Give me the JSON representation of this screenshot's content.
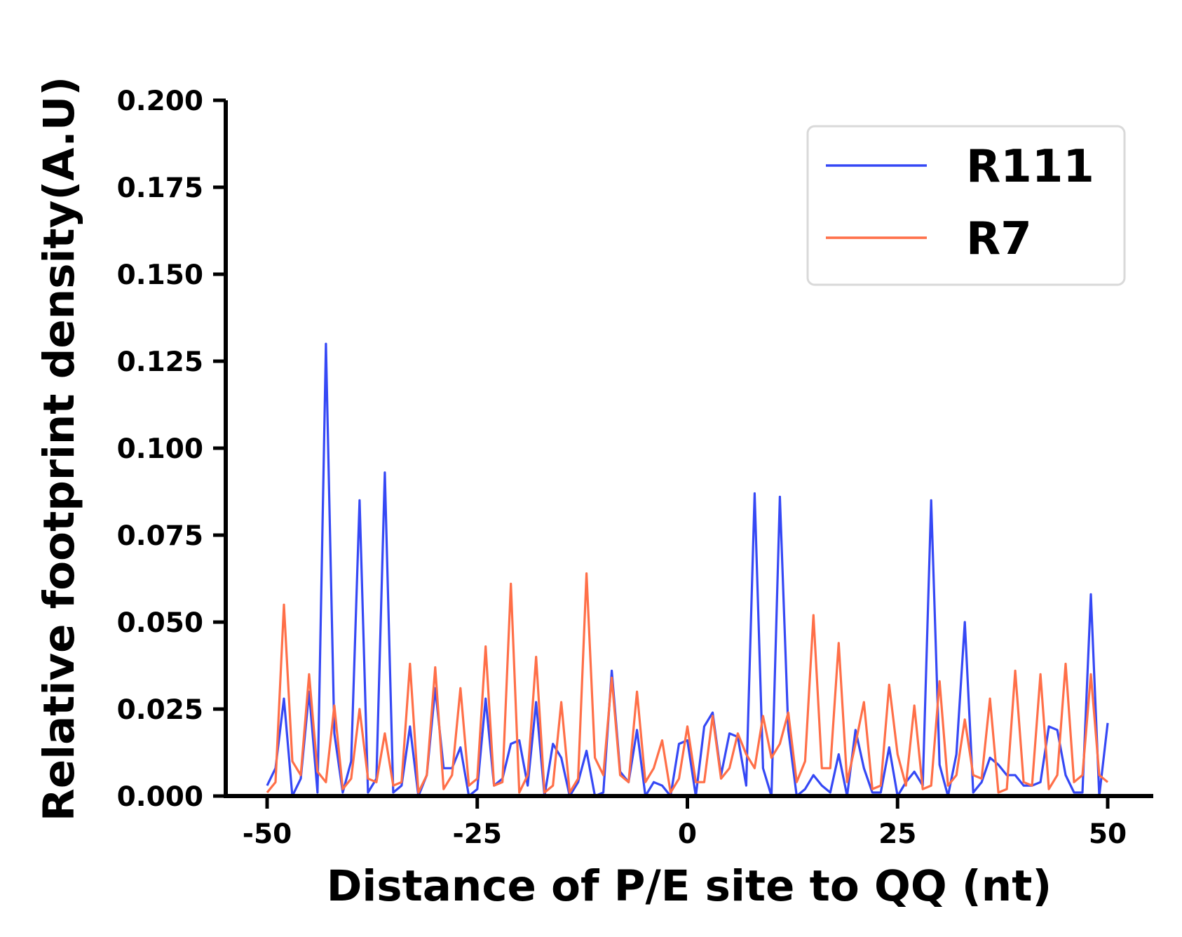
{
  "chart_data": {
    "type": "line",
    "title": "",
    "xlabel": "Distance of P/E site to QQ (nt)",
    "ylabel": "Relative footprint density(A.U)",
    "xlim": [
      -50,
      50
    ],
    "ylim": [
      0,
      0.2
    ],
    "xticks": [
      -50,
      -25,
      0,
      25,
      50
    ],
    "xtick_labels": [
      "-50",
      "-25",
      "0",
      "25",
      "50"
    ],
    "yticks": [
      0,
      0.025,
      0.05,
      0.075,
      0.1,
      0.125,
      0.15,
      0.175,
      0.2
    ],
    "ytick_labels": [
      "0.000",
      "0.025",
      "0.050",
      "0.075",
      "0.100",
      "0.125",
      "0.150",
      "0.175",
      "0.200"
    ],
    "grid": false,
    "legend_position": "top-right",
    "x": [
      -50,
      -49,
      -48,
      -47,
      -46,
      -45,
      -44,
      -43,
      -42,
      -41,
      -40,
      -39,
      -38,
      -37,
      -36,
      -35,
      -34,
      -33,
      -32,
      -31,
      -30,
      -29,
      -28,
      -27,
      -26,
      -25,
      -24,
      -23,
      -22,
      -21,
      -20,
      -19,
      -18,
      -17,
      -16,
      -15,
      -14,
      -13,
      -12,
      -11,
      -10,
      -9,
      -8,
      -7,
      -6,
      -5,
      -4,
      -3,
      -2,
      -1,
      0,
      1,
      2,
      3,
      4,
      5,
      6,
      7,
      8,
      9,
      10,
      11,
      12,
      13,
      14,
      15,
      16,
      17,
      18,
      19,
      20,
      21,
      22,
      23,
      24,
      25,
      26,
      27,
      28,
      29,
      30,
      31,
      32,
      33,
      34,
      35,
      36,
      37,
      38,
      39,
      40,
      41,
      42,
      43,
      44,
      45,
      46,
      47,
      48,
      49,
      50
    ],
    "series": [
      {
        "name": "R111",
        "color": "#3548f5",
        "values": [
          0.003,
          0.008,
          0.028,
          0.0,
          0.005,
          0.03,
          0.001,
          0.13,
          0.018,
          0.001,
          0.01,
          0.085,
          0.001,
          0.005,
          0.093,
          0.001,
          0.003,
          0.02,
          0.0,
          0.006,
          0.031,
          0.008,
          0.008,
          0.014,
          0.0,
          0.002,
          0.028,
          0.003,
          0.005,
          0.015,
          0.016,
          0.003,
          0.027,
          0.0,
          0.015,
          0.011,
          0.0,
          0.004,
          0.013,
          0.0,
          0.001,
          0.036,
          0.007,
          0.004,
          0.019,
          0.0,
          0.004,
          0.003,
          0.0,
          0.015,
          0.016,
          0.0,
          0.02,
          0.024,
          0.006,
          0.018,
          0.017,
          0.003,
          0.087,
          0.008,
          0.0,
          0.086,
          0.019,
          0.0,
          0.002,
          0.006,
          0.003,
          0.001,
          0.012,
          0.0,
          0.019,
          0.008,
          0.001,
          0.001,
          0.014,
          0.0,
          0.004,
          0.007,
          0.003,
          0.085,
          0.009,
          0.0,
          0.012,
          0.05,
          0.001,
          0.004,
          0.011,
          0.009,
          0.006,
          0.006,
          0.003,
          0.003,
          0.004,
          0.02,
          0.019,
          0.006,
          0.001,
          0.001,
          0.058,
          0.0,
          0.021
        ]
      },
      {
        "name": "R7",
        "color": "#ff6f48",
        "values": [
          0.001,
          0.004,
          0.055,
          0.01,
          0.006,
          0.035,
          0.007,
          0.004,
          0.026,
          0.002,
          0.005,
          0.025,
          0.005,
          0.004,
          0.018,
          0.003,
          0.004,
          0.038,
          0.001,
          0.006,
          0.037,
          0.002,
          0.006,
          0.031,
          0.003,
          0.005,
          0.043,
          0.003,
          0.004,
          0.061,
          0.001,
          0.006,
          0.04,
          0.001,
          0.003,
          0.027,
          0.001,
          0.005,
          0.064,
          0.011,
          0.006,
          0.034,
          0.006,
          0.004,
          0.03,
          0.004,
          0.008,
          0.016,
          0.001,
          0.005,
          0.02,
          0.004,
          0.004,
          0.023,
          0.005,
          0.008,
          0.018,
          0.012,
          0.008,
          0.023,
          0.011,
          0.015,
          0.024,
          0.004,
          0.01,
          0.052,
          0.008,
          0.008,
          0.044,
          0.004,
          0.015,
          0.027,
          0.002,
          0.003,
          0.032,
          0.012,
          0.003,
          0.026,
          0.002,
          0.003,
          0.033,
          0.003,
          0.006,
          0.022,
          0.006,
          0.005,
          0.028,
          0.001,
          0.002,
          0.036,
          0.004,
          0.003,
          0.035,
          0.002,
          0.006,
          0.038,
          0.004,
          0.006,
          0.035,
          0.006,
          0.004
        ]
      }
    ]
  }
}
